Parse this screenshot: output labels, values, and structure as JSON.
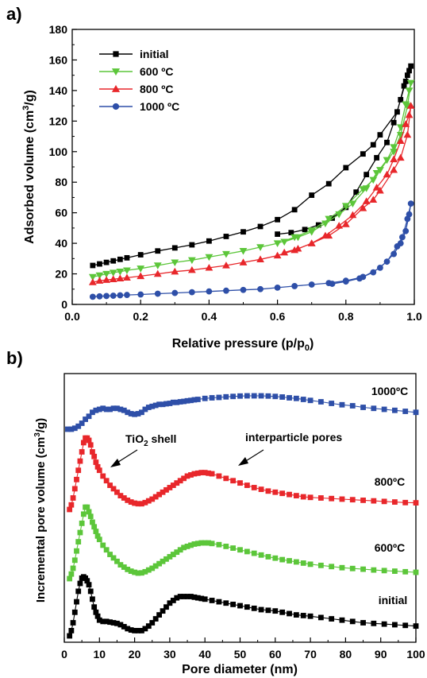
{
  "panels": {
    "a": {
      "label": "a)"
    },
    "b": {
      "label": "b)"
    }
  },
  "chart_data": [
    {
      "type": "line",
      "panel": "a",
      "xlabel_main": "Relative pressure (p/p",
      "xlabel_sub": "0",
      "xlabel_end": ")",
      "ylabel_main": "Adsorbed volume (cm",
      "ylabel_sup": "3",
      "ylabel_end": "/g)",
      "xlim": [
        0.0,
        1.0
      ],
      "ylim": [
        0,
        180
      ],
      "xticks": [
        "0.0",
        "0.2",
        "0.4",
        "0.6",
        "0.8",
        "1.0"
      ],
      "xtick_values": [
        0.0,
        0.2,
        0.4,
        0.6,
        0.8,
        1.0
      ],
      "yticks": [
        "0",
        "20",
        "40",
        "60",
        "80",
        "100",
        "120",
        "140",
        "160",
        "180"
      ],
      "ytick_values": [
        0,
        20,
        40,
        60,
        80,
        100,
        120,
        140,
        160,
        180
      ],
      "legend_position": "top-left",
      "series": [
        {
          "name": "initial",
          "color": "#000000",
          "marker": "square",
          "x": [
            0.06,
            0.08,
            0.1,
            0.12,
            0.14,
            0.16,
            0.2,
            0.25,
            0.3,
            0.35,
            0.4,
            0.45,
            0.5,
            0.55,
            0.6,
            0.65,
            0.7,
            0.75,
            0.8,
            0.85,
            0.88,
            0.9,
            0.95,
            0.97,
            0.98,
            0.99,
            0.985,
            0.975,
            0.96,
            0.94,
            0.92,
            0.89,
            0.86,
            0.83,
            0.8,
            0.76,
            0.72,
            0.68,
            0.64,
            0.6
          ],
          "y": [
            25.5,
            26.5,
            27.5,
            28.5,
            29.5,
            30.5,
            32.5,
            35,
            37,
            39,
            41.5,
            44.5,
            47.5,
            51,
            55.5,
            62,
            71.5,
            79,
            89.5,
            98.5,
            104.5,
            111,
            126,
            143,
            150,
            156,
            153,
            146,
            134,
            119,
            106,
            96,
            85,
            73.5,
            63.5,
            56.5,
            52,
            49,
            47,
            46
          ],
          "y_desorption_note": ""
        },
        {
          "name": "600 ºC",
          "color": "#5cc63a",
          "marker": "triangle-down",
          "x": [
            0.06,
            0.08,
            0.1,
            0.12,
            0.14,
            0.16,
            0.2,
            0.25,
            0.3,
            0.35,
            0.4,
            0.45,
            0.5,
            0.55,
            0.6,
            0.65,
            0.7,
            0.75,
            0.8,
            0.85,
            0.88,
            0.9,
            0.94,
            0.96,
            0.98,
            0.99,
            0.985,
            0.975,
            0.96,
            0.94,
            0.92,
            0.89,
            0.86,
            0.82,
            0.78,
            0.74,
            0.7,
            0.66,
            0.62
          ],
          "y": [
            18,
            19,
            20,
            20.8,
            21.5,
            22.3,
            23.5,
            25.5,
            27.5,
            29,
            31,
            33,
            35,
            37.5,
            40,
            44,
            48.5,
            56,
            64.5,
            75.5,
            81.5,
            88,
            100,
            111,
            130,
            145,
            140,
            131,
            116,
            103,
            94.5,
            86,
            76,
            66,
            59,
            53,
            47.5,
            44,
            41
          ]
        },
        {
          "name": "800 ºC",
          "color": "#e8272b",
          "marker": "triangle-up",
          "x": [
            0.06,
            0.08,
            0.1,
            0.12,
            0.14,
            0.16,
            0.2,
            0.25,
            0.3,
            0.35,
            0.4,
            0.45,
            0.5,
            0.55,
            0.6,
            0.65,
            0.7,
            0.75,
            0.8,
            0.85,
            0.88,
            0.9,
            0.94,
            0.96,
            0.98,
            0.99,
            0.985,
            0.975,
            0.96,
            0.94,
            0.92,
            0.89,
            0.86,
            0.82,
            0.78,
            0.74,
            0.7,
            0.66,
            0.62
          ],
          "y": [
            14.5,
            15.5,
            16,
            16.5,
            17,
            17.5,
            18.5,
            20,
            21.5,
            22.5,
            24,
            25.5,
            27.5,
            29.5,
            32,
            35.5,
            40,
            45,
            52.5,
            63,
            68.5,
            74.5,
            88,
            96,
            111,
            130,
            124,
            118,
            107,
            95,
            85,
            76.5,
            67.5,
            58.5,
            51.5,
            45,
            40,
            36.5,
            34
          ]
        },
        {
          "name": "1000 ºC",
          "color": "#2e4fa8",
          "marker": "circle",
          "x": [
            0.06,
            0.08,
            0.1,
            0.12,
            0.14,
            0.16,
            0.2,
            0.25,
            0.3,
            0.35,
            0.4,
            0.45,
            0.5,
            0.55,
            0.6,
            0.65,
            0.7,
            0.75,
            0.8,
            0.85,
            0.9,
            0.94,
            0.96,
            0.975,
            0.985,
            0.99,
            0.98,
            0.965,
            0.95,
            0.92,
            0.88,
            0.84,
            0.8,
            0.76
          ],
          "y": [
            5,
            5.3,
            5.5,
            5.7,
            6,
            6.2,
            6.5,
            7,
            7.5,
            8,
            8.5,
            9,
            9.5,
            10,
            11,
            12,
            13,
            14,
            15.5,
            18,
            24,
            33,
            40,
            48,
            59,
            66,
            56,
            44,
            38,
            28,
            21,
            17,
            15,
            13.5
          ]
        }
      ]
    },
    {
      "type": "line",
      "panel": "b",
      "xlabel": "Pore diameter (nm)",
      "ylabel_main": "Incremental pore volume (cm",
      "ylabel_sup": "3",
      "ylabel_end": "/g)",
      "xlim": [
        0,
        100
      ],
      "xticks": [
        "0",
        "10",
        "20",
        "30",
        "40",
        "50",
        "60",
        "70",
        "80",
        "90",
        "100"
      ],
      "xtick_values": [
        0,
        10,
        20,
        30,
        40,
        50,
        60,
        70,
        80,
        90,
        100
      ],
      "annotations": [
        {
          "text_main": "TiO",
          "text_sub": "2",
          "text_end": " shell"
        },
        {
          "text_main": "interparticle pores",
          "text_sub": "",
          "text_end": ""
        }
      ],
      "series": [
        {
          "name": "1000ºC",
          "color": "#2e4fa8",
          "x": [
            1,
            2,
            3,
            4,
            5,
            6,
            7,
            8,
            9,
            10,
            11,
            12,
            13,
            14,
            15,
            16,
            17,
            18,
            19,
            20,
            21,
            22,
            23,
            24,
            25,
            26,
            27,
            28,
            29,
            30,
            31,
            32,
            33,
            34,
            35,
            36,
            37,
            38,
            40,
            42,
            44,
            46,
            48,
            50,
            52,
            54,
            56,
            58,
            60,
            62,
            64,
            66,
            68,
            70,
            73,
            76,
            79,
            82,
            85,
            88,
            91,
            94,
            97,
            100
          ],
          "y": [
            0.0,
            0.0,
            0.005,
            0.015,
            0.03,
            0.05,
            0.065,
            0.085,
            0.095,
            0.1,
            0.105,
            0.1,
            0.1,
            0.105,
            0.105,
            0.1,
            0.095,
            0.085,
            0.078,
            0.075,
            0.078,
            0.085,
            0.1,
            0.11,
            0.115,
            0.12,
            0.125,
            0.125,
            0.128,
            0.13,
            0.135,
            0.135,
            0.138,
            0.14,
            0.143,
            0.145,
            0.148,
            0.15,
            0.155,
            0.158,
            0.16,
            0.163,
            0.165,
            0.167,
            0.168,
            0.168,
            0.168,
            0.167,
            0.165,
            0.162,
            0.158,
            0.155,
            0.15,
            0.145,
            0.138,
            0.13,
            0.123,
            0.118,
            0.11,
            0.105,
            0.1,
            0.095,
            0.09,
            0.085
          ]
        },
        {
          "name": "800ºC",
          "color": "#e8272b",
          "x": [
            1.5,
            2,
            2.5,
            3,
            3.5,
            4,
            4.5,
            5,
            5.5,
            6,
            6.5,
            7,
            7.5,
            8,
            8.5,
            9,
            9.5,
            10,
            11,
            12,
            13,
            14,
            15,
            16,
            17,
            18,
            19,
            20,
            21,
            22,
            23,
            24,
            25,
            26,
            27,
            28,
            29,
            30,
            31,
            32,
            33,
            34,
            35,
            36,
            37,
            38,
            39,
            40,
            41,
            42,
            44,
            46,
            48,
            50,
            52,
            54,
            56,
            58,
            60,
            62,
            64,
            66,
            68,
            70,
            73,
            76,
            79,
            82,
            85,
            88,
            91,
            94,
            97,
            100
          ],
          "y": [
            0.0,
            0.04,
            0.1,
            0.18,
            0.26,
            0.34,
            0.42,
            0.5,
            0.58,
            0.62,
            0.62,
            0.6,
            0.56,
            0.5,
            0.46,
            0.41,
            0.37,
            0.34,
            0.29,
            0.25,
            0.21,
            0.18,
            0.15,
            0.12,
            0.1,
            0.08,
            0.065,
            0.055,
            0.05,
            0.05,
            0.06,
            0.075,
            0.09,
            0.11,
            0.13,
            0.15,
            0.17,
            0.19,
            0.21,
            0.23,
            0.25,
            0.27,
            0.29,
            0.3,
            0.31,
            0.315,
            0.32,
            0.32,
            0.315,
            0.31,
            0.29,
            0.27,
            0.25,
            0.23,
            0.21,
            0.19,
            0.175,
            0.16,
            0.15,
            0.14,
            0.13,
            0.12,
            0.11,
            0.105,
            0.1,
            0.095,
            0.09,
            0.085,
            0.08,
            0.075,
            0.07,
            0.065,
            0.06,
            0.058
          ]
        },
        {
          "name": "600ºC",
          "color": "#5cc63a",
          "x": [
            1.5,
            2,
            2.5,
            3,
            3.5,
            4,
            4.5,
            5,
            5.5,
            6,
            6.5,
            7,
            7.5,
            8,
            8.5,
            9,
            9.5,
            10,
            11,
            12,
            13,
            14,
            15,
            16,
            17,
            18,
            19,
            20,
            21,
            22,
            23,
            24,
            25,
            26,
            27,
            28,
            29,
            30,
            31,
            32,
            33,
            34,
            35,
            36,
            37,
            38,
            39,
            40,
            41,
            42,
            44,
            46,
            48,
            50,
            52,
            54,
            56,
            58,
            60,
            62,
            64,
            66,
            68,
            70,
            73,
            76,
            79,
            82,
            85,
            88,
            91,
            94,
            97,
            100
          ],
          "y": [
            0.0,
            0.04,
            0.09,
            0.16,
            0.24,
            0.32,
            0.4,
            0.48,
            0.56,
            0.62,
            0.62,
            0.58,
            0.54,
            0.49,
            0.45,
            0.41,
            0.37,
            0.34,
            0.29,
            0.25,
            0.21,
            0.18,
            0.15,
            0.12,
            0.1,
            0.08,
            0.065,
            0.055,
            0.048,
            0.05,
            0.06,
            0.075,
            0.09,
            0.11,
            0.13,
            0.15,
            0.17,
            0.19,
            0.21,
            0.23,
            0.25,
            0.27,
            0.28,
            0.29,
            0.3,
            0.305,
            0.31,
            0.31,
            0.31,
            0.305,
            0.295,
            0.28,
            0.265,
            0.25,
            0.235,
            0.22,
            0.205,
            0.19,
            0.178,
            0.165,
            0.155,
            0.145,
            0.135,
            0.125,
            0.115,
            0.105,
            0.095,
            0.088,
            0.082,
            0.075,
            0.07,
            0.065,
            0.06,
            0.055
          ]
        },
        {
          "name": "initial",
          "color": "#000000",
          "x": [
            1.5,
            2,
            2.5,
            3,
            3.5,
            4,
            4.5,
            5,
            5.5,
            6,
            6.5,
            7,
            7.5,
            8,
            8.5,
            9,
            9.5,
            10,
            11,
            12,
            13,
            14,
            15,
            16,
            17,
            18,
            19,
            20,
            21,
            22,
            23,
            24,
            25,
            26,
            27,
            28,
            29,
            30,
            31,
            32,
            33,
            34,
            35,
            36,
            37,
            38,
            39,
            40,
            42,
            44,
            46,
            48,
            50,
            52,
            54,
            56,
            58,
            60,
            62,
            64,
            66,
            68,
            70,
            73,
            76,
            79,
            82,
            85,
            88,
            91,
            94,
            97,
            100
          ],
          "y": [
            0.0,
            0.04,
            0.1,
            0.18,
            0.26,
            0.34,
            0.4,
            0.44,
            0.45,
            0.44,
            0.42,
            0.39,
            0.34,
            0.28,
            0.22,
            0.18,
            0.15,
            0.12,
            0.11,
            0.11,
            0.105,
            0.1,
            0.095,
            0.085,
            0.07,
            0.055,
            0.045,
            0.04,
            0.04,
            0.04,
            0.055,
            0.075,
            0.1,
            0.13,
            0.16,
            0.19,
            0.22,
            0.25,
            0.27,
            0.29,
            0.3,
            0.3,
            0.3,
            0.3,
            0.295,
            0.29,
            0.285,
            0.28,
            0.27,
            0.26,
            0.25,
            0.24,
            0.23,
            0.22,
            0.21,
            0.2,
            0.195,
            0.19,
            0.18,
            0.17,
            0.16,
            0.155,
            0.15,
            0.14,
            0.13,
            0.12,
            0.11,
            0.1,
            0.095,
            0.09,
            0.085,
            0.08,
            0.075
          ]
        }
      ]
    }
  ]
}
